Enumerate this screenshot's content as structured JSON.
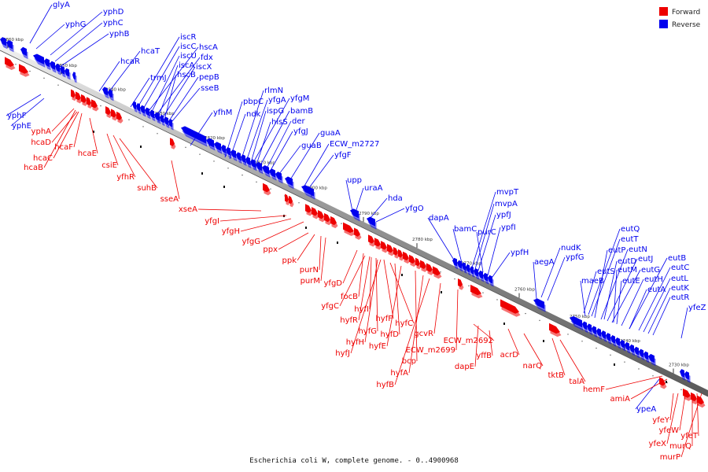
{
  "caption": "Escherichia coli W, complete genome. - 0..4900968",
  "legend": {
    "forward_label": "Forward",
    "reverse_label": "Reverse",
    "forward_color": "#ee0000",
    "reverse_color": "#0000ee"
  },
  "ticks": [
    "2860 kbp",
    "2850 kbp",
    "2840 kbp",
    "2830 kbp",
    "2820 kbp",
    "2810 kbp",
    "2800 kbp",
    "2790 kbp",
    "2780 kbp",
    "2770 kbp",
    "2760 kbp",
    "2750 kbp",
    "2740 kbp",
    "2730 kbp"
  ],
  "reverse_labels": [
    "glyA",
    "yphD",
    "yphG",
    "yphC",
    "yphB",
    "iscR",
    "hcaT",
    "iscC",
    "hscA",
    "iscU",
    "fdx",
    "hcaR",
    "iscA",
    "iscX",
    "trmJ",
    "hscB",
    "pepB",
    "sseB",
    "rlmN",
    "pbpC",
    "yfgA",
    "yfgM",
    "yfhM",
    "ndk",
    "ispG",
    "bamB",
    "hisS",
    "der",
    "yfgJ",
    "guaA",
    "guaB",
    "ECW_m2727",
    "yfgF",
    "upp",
    "uraA",
    "hda",
    "yfgO",
    "mvpT",
    "mvpA",
    "dapA",
    "ypfJ",
    "bamC",
    "purC",
    "ypfI",
    "ypfH",
    "nudK",
    "aegA",
    "ypfG",
    "eutQ",
    "eutT",
    "eutP",
    "eutN",
    "eutS",
    "eutJ",
    "eutD",
    "eutG",
    "eutB",
    "eutM",
    "maeB",
    "eutE",
    "eutH",
    "eutC",
    "eutL",
    "eutA",
    "eutK",
    "eutR",
    "yfeZ",
    "yphF",
    "yphE",
    "ypeA"
  ],
  "forward_labels": [
    "yphA",
    "hcaD",
    "hcaF",
    "hcaC",
    "hcaE",
    "hcaB",
    "csiE",
    "yfhR",
    "suhB",
    "sseA",
    "xseA",
    "yfgI",
    "yfgH",
    "yfgG",
    "ppx",
    "ppk",
    "purN",
    "purM",
    "yfgD",
    "focB",
    "yfgC",
    "hyfI",
    "hyfR",
    "hyfF",
    "hyfG",
    "hyfC",
    "hyfD",
    "hyfH",
    "hyfE",
    "hyfJ",
    "gcvR",
    "ECW_m2699",
    "bcp",
    "hyfA",
    "hyfB",
    "ECW_m2692",
    "yffB",
    "dapE",
    "acrD",
    "narQ",
    "tktB",
    "talA",
    "hemF",
    "amiA",
    "yfeY",
    "yfeW",
    "yfeX",
    "yfeT",
    "murQ",
    "murP"
  ]
}
